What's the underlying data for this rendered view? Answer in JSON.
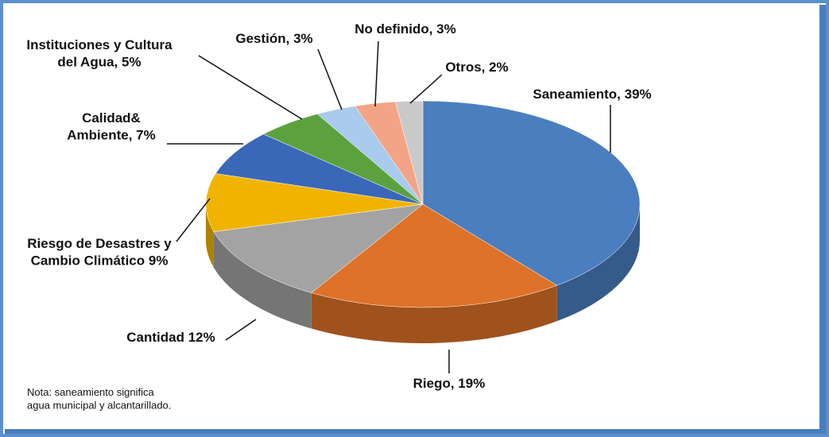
{
  "chart_data": {
    "type": "pie3d",
    "categories": [
      "Saneamiento",
      "Riego",
      "Cantidad",
      "Riesgo de Desastres y Cambio Climático",
      "Calidad& Ambiente",
      "Instituciones y Cultura del Agua",
      "Gestión",
      "No definido",
      "Otros"
    ],
    "values": [
      39,
      19,
      12,
      9,
      7,
      5,
      3,
      3,
      2
    ],
    "value_labels": [
      "Saneamiento, 39%",
      "Riego, 19%",
      "Cantidad 12%",
      "Riesgo de Desastres y\nCambio Climático 9%",
      "Calidad&\nAmbiente, 7%",
      "Instituciones y Cultura\ndel Agua, 5%",
      "Gestión, 3%",
      "No definido, 3%",
      "Otros, 2%"
    ],
    "colors": [
      "#4a7ebf",
      "#de7228",
      "#a3a3a3",
      "#f0b400",
      "#3a67b8",
      "#5ba23f",
      "#a8cbee",
      "#f3a486",
      "#c9c9c9"
    ],
    "note": "Nota: saneamiento significa\nagua municipal y alcantarillado."
  }
}
